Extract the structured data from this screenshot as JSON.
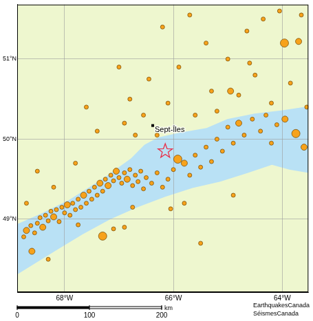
{
  "chart_data": {
    "type": "bubble",
    "x": [
      -68.75,
      -68.7,
      -68.62,
      -68.55,
      -68.5,
      -68.45,
      -68.4,
      -68.35,
      -68.3,
      -68.25,
      -68.2,
      -68.15,
      -68.1,
      -68.05,
      -68.0,
      -67.95,
      -67.9,
      -67.85,
      -67.8,
      -67.75,
      -67.7,
      -67.65,
      -67.6,
      -67.55,
      -67.5,
      -67.45,
      -67.4,
      -67.35,
      -67.3,
      -67.25,
      -67.2,
      -67.15,
      -67.1,
      -67.05,
      -67.0,
      -66.95,
      -66.9,
      -66.85,
      -66.8,
      -66.75,
      -66.7,
      -66.65,
      -66.6,
      -66.55,
      -66.5,
      -66.4,
      -66.3,
      -66.2,
      -66.1,
      -66.0,
      -65.92,
      -65.8,
      -65.7,
      -65.6,
      -65.5,
      -65.4,
      -65.3,
      -65.2,
      -65.1,
      -65.0,
      -64.9,
      -64.8,
      -64.7,
      -64.55,
      -64.4,
      -64.3,
      -64.2,
      -64.1,
      -63.95,
      -63.75,
      -63.6,
      -63.55,
      -67.3,
      -67.75,
      -68.6,
      -67.1,
      -66.05,
      -66.75,
      -66.7,
      -66.55,
      -66.8,
      -66.45,
      -66.3,
      -66.1,
      -65.9,
      -65.6,
      -65.4,
      -65.3,
      -65.2,
      -65.0,
      -64.8,
      -64.65,
      -64.5,
      -64.35,
      -64.2,
      -63.96,
      -63.7,
      -63.85,
      -64.05,
      -63.65,
      -64.6,
      -64.95,
      -67.4,
      -67.8,
      -67.6,
      -68.2,
      -68.5,
      -67.0,
      -66.9,
      -66.2,
      -68.7,
      -65.7,
      -66.9,
      -65.8,
      -64.9,
      -65.5,
      -68.3
    ],
    "values": [
      48.78,
      48.86,
      48.92,
      48.83,
      48.95,
      49.02,
      48.9,
      49.05,
      48.98,
      49.1,
      49.03,
      49.12,
      48.97,
      49.15,
      49.08,
      49.18,
      49.05,
      49.2,
      49.12,
      49.25,
      49.15,
      49.3,
      49.2,
      49.35,
      49.25,
      49.4,
      49.3,
      49.45,
      49.35,
      49.5,
      49.42,
      49.55,
      49.48,
      49.6,
      49.52,
      49.45,
      49.58,
      49.5,
      49.62,
      49.42,
      49.55,
      49.47,
      49.6,
      49.38,
      49.52,
      49.45,
      49.58,
      49.4,
      49.5,
      49.62,
      49.75,
      49.7,
      49.55,
      49.8,
      49.65,
      49.9,
      49.72,
      50.0,
      49.85,
      50.15,
      49.95,
      50.2,
      50.05,
      50.25,
      50.1,
      50.3,
      49.95,
      50.18,
      50.25,
      50.07,
      49.9,
      50.4,
      48.79,
      48.93,
      48.6,
      48.88,
      49.13,
      49.15,
      50.05,
      50.3,
      50.5,
      50.75,
      50.05,
      50.45,
      50.9,
      50.3,
      51.2,
      50.6,
      50.35,
      51.0,
      50.55,
      51.35,
      50.8,
      51.5,
      50.45,
      51.2,
      51.22,
      50.7,
      51.6,
      51.55,
      50.95,
      50.6,
      50.1,
      49.7,
      50.4,
      49.4,
      49.6,
      50.9,
      50.2,
      51.4,
      49.2,
      51.55,
      48.9,
      49.2,
      49.3,
      48.7,
      48.5
    ],
    "magnitude": [
      2,
      3,
      2,
      2,
      2,
      2,
      3,
      2,
      2,
      2,
      3,
      2,
      2,
      2,
      2,
      3,
      2,
      2,
      2,
      2,
      2,
      3,
      2,
      2,
      2,
      2,
      2,
      3,
      2,
      2,
      3,
      2,
      2,
      3,
      2,
      2,
      2,
      3,
      2,
      2,
      2,
      2,
      2,
      2,
      2,
      2,
      2,
      2,
      2,
      2,
      4,
      3,
      2,
      2,
      2,
      2,
      2,
      2,
      2,
      2,
      2,
      3,
      2,
      2,
      2,
      2,
      2,
      2,
      3,
      4,
      3,
      2,
      4,
      2,
      3,
      2,
      2,
      2,
      2,
      2,
      2,
      2,
      2,
      2,
      2,
      2,
      2,
      2,
      2,
      2,
      2,
      2,
      2,
      2,
      2,
      4,
      3,
      2,
      2,
      2,
      2,
      3,
      2,
      2,
      2,
      2,
      2,
      2,
      2,
      2,
      2,
      2,
      2,
      2,
      2,
      2,
      2
    ],
    "color": "#f7a21b",
    "xlim": [
      -68.87,
      -63.52
    ],
    "ylim": [
      48.09,
      51.68
    ],
    "xticks": [
      {
        "value": -68,
        "label": "68°W"
      },
      {
        "value": -66,
        "label": "66°W"
      },
      {
        "value": -64,
        "label": "64°W"
      }
    ],
    "yticks": [
      {
        "value": 49,
        "label": "49°N"
      },
      {
        "value": 50,
        "label": "50°N"
      },
      {
        "value": 51,
        "label": "51°N"
      }
    ],
    "grid": true
  },
  "water": {
    "color": "#b9e1f5",
    "lon": [
      -68.87,
      -68.43,
      -67.92,
      -67.29,
      -66.78,
      -66.53,
      -66.28,
      -65.9,
      -65.39,
      -65.01,
      -64.51,
      -64.0,
      -63.52,
      -63.52,
      -63.87,
      -64.19,
      -64.63,
      -65.14,
      -65.65,
      -66.15,
      -66.66,
      -67.16,
      -67.67,
      -68.18,
      -68.87
    ],
    "lat": [
      48.94,
      49.07,
      49.24,
      49.51,
      49.76,
      49.93,
      50.02,
      50.08,
      50.14,
      50.25,
      50.32,
      50.36,
      50.41,
      49.58,
      49.62,
      49.68,
      49.58,
      49.47,
      49.39,
      49.28,
      49.15,
      49.0,
      48.81,
      48.6,
      48.31
    ]
  },
  "land_color": "#eef7cf",
  "places": [
    {
      "label": "Sept-Îles",
      "lon": -66.38,
      "lat": 50.17
    }
  ],
  "epicentre": {
    "lon": -66.15,
    "lat": 49.85,
    "marker": "star",
    "color": "#e8304a"
  },
  "scale_bar": {
    "ticks": [
      0,
      100,
      200
    ],
    "unit": "km"
  },
  "credits": [
    "EarthquakesCanada",
    "SéismesCanada"
  ]
}
